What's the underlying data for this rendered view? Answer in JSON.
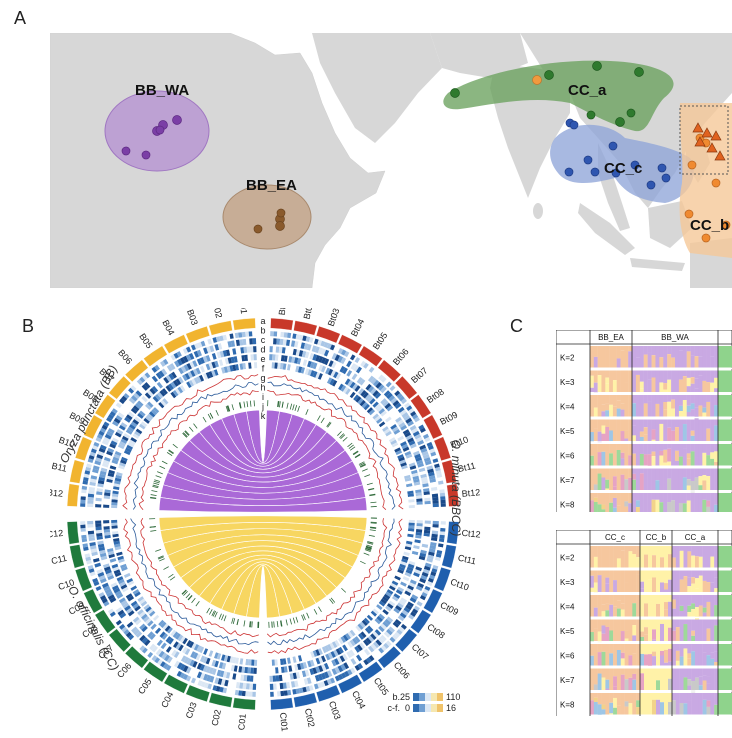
{
  "panels": {
    "a": "A",
    "b": "B",
    "c": "C"
  },
  "map": {
    "groups": [
      {
        "label": "BB_WA",
        "color": "#8e59b4"
      },
      {
        "label": "BB_EA",
        "color": "#a0744b"
      },
      {
        "label": "CC_a",
        "color": "#3f8c3a"
      },
      {
        "label": "CC_c",
        "color": "#4a6fc0"
      },
      {
        "label": "CC_b",
        "color": "#f0a860"
      }
    ]
  },
  "circos": {
    "genome_labels": {
      "bb": "Oryza punctata (BB)",
      "bbcc": "O. minuta (BBCC)",
      "cc": "O. officinalis (CC)"
    },
    "track_letters": [
      "a",
      "b",
      "c",
      "d",
      "e",
      "f",
      "g",
      "h",
      "i",
      "j",
      "k"
    ],
    "chromosomes": {
      "bb": [
        "B01",
        "B02",
        "B03",
        "B04",
        "B05",
        "B06",
        "B07",
        "B08",
        "B09",
        "B10",
        "B11",
        "B12"
      ],
      "bbcc_b": [
        "Bt01",
        "Bt02",
        "Bt03",
        "Bt04",
        "Bt05",
        "Bt06",
        "Bt07",
        "Bt08",
        "Bt09",
        "Bt10",
        "Bt11",
        "Bt12"
      ],
      "cc": [
        "C01",
        "C02",
        "C03",
        "C04",
        "C05",
        "C06",
        "C07",
        "C08",
        "C09",
        "C10",
        "C11",
        "C12"
      ],
      "bbcc_c": [
        "Ct01",
        "Ct02",
        "Ct03",
        "Ct04",
        "Ct05",
        "Ct06",
        "Ct07",
        "Ct08",
        "Ct09",
        "Ct10",
        "Ct11",
        "Ct12"
      ]
    },
    "colors": {
      "bb": "#f1b42f",
      "bbcc_b": "#c8382a",
      "cc": "#1f7a3c",
      "bbcc_c": "#1f5fae",
      "link_b": "#9b4fd0",
      "link_c": "#f6cf45"
    },
    "legend": [
      {
        "label": "b.",
        "min": "25",
        "max": "110"
      },
      {
        "label": "c-f.",
        "min": "0",
        "max": "16"
      }
    ]
  },
  "structure": {
    "top": {
      "groups": [
        "BB_EA",
        "BB_WA"
      ],
      "k": [
        "K=2",
        "K=3",
        "K=4",
        "K=5",
        "K=6",
        "K=7",
        "K=8"
      ]
    },
    "bottom": {
      "groups": [
        "CC_c",
        "CC_b",
        "CC_a"
      ],
      "k": [
        "K=2",
        "K=3",
        "K=4",
        "K=5",
        "K=6",
        "K=7",
        "K=8"
      ]
    }
  }
}
